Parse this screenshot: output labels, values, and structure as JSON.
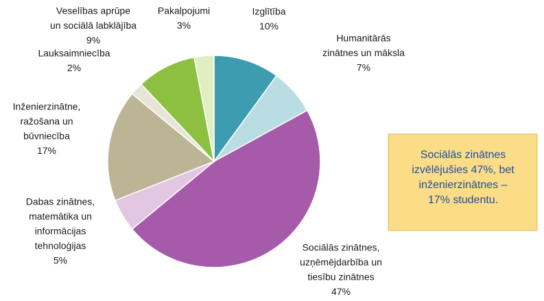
{
  "chart_data": {
    "type": "pie",
    "categories": [
      [
        "Izglītība"
      ],
      [
        "Humanitārās",
        "zinātnes un māksla"
      ],
      [
        "Sociālās zinātnes,",
        "uzņēmējdarbība  un",
        "tiesību zinātnes"
      ],
      [
        "Dabas zinātnes,",
        "matemātika un",
        "informācijas",
        "tehnoloģijas"
      ],
      [
        "Inženierzinātne,",
        "ražošana un",
        "būvniecība"
      ],
      [
        "Lauksaimniecība"
      ],
      [
        "Veselības aprūpe",
        "un sociālā labklājība"
      ],
      [
        "Pakalpojumi"
      ]
    ],
    "values": [
      10,
      7,
      47,
      5,
      17,
      2,
      9,
      3
    ],
    "value_labels": [
      "10%",
      "7%",
      "47%",
      "5%",
      "17%",
      "2%",
      "9%",
      "3%"
    ],
    "colors": [
      "#3d9caf",
      "#badde3",
      "#a65baa",
      "#e3c6e2",
      "#bcb595",
      "#e7e4d8",
      "#8dc040",
      "#e1eec2"
    ],
    "annotation": [
      "Sociālās zinātnes",
      "izvēlējušies 47%, bet",
      "inženierzinātnes –",
      "17% studentu."
    ]
  }
}
